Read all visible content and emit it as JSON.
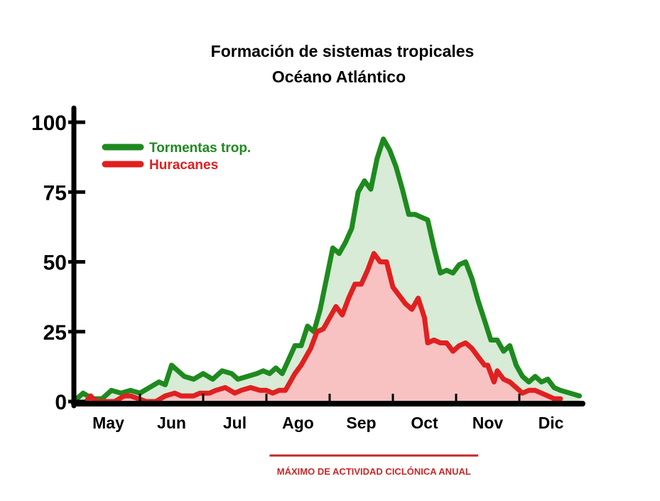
{
  "chart_data": {
    "type": "area",
    "title": "Formación de sistemas tropicales",
    "subtitle": "Océano Atlántico",
    "xlabel": "",
    "ylabel": "",
    "ylim": [
      0,
      100
    ],
    "y_ticks": [
      "0",
      "25",
      "50",
      "75",
      "100"
    ],
    "categories": [
      "May",
      "Jun",
      "Jul",
      "Ago",
      "Sep",
      "Oct",
      "Nov",
      "Dic"
    ],
    "x_range": [
      0,
      8
    ],
    "legend_position": "top-left",
    "grid": false,
    "note": "MÁXIMO DE ACTIVIDAD CICLÓNICA ANUAL",
    "note_range": [
      3.05,
      6.35
    ],
    "series": [
      {
        "name": "Tormentas trop.",
        "color": "#1e8a1e",
        "fill": "#d7ebd7",
        "points": [
          [
            0.0,
            1
          ],
          [
            0.1,
            3
          ],
          [
            0.25,
            1
          ],
          [
            0.4,
            1
          ],
          [
            0.55,
            4
          ],
          [
            0.7,
            3
          ],
          [
            0.85,
            4
          ],
          [
            1.0,
            3
          ],
          [
            1.15,
            5
          ],
          [
            1.3,
            7
          ],
          [
            1.4,
            6
          ],
          [
            1.5,
            13
          ],
          [
            1.6,
            11
          ],
          [
            1.7,
            9
          ],
          [
            1.85,
            8
          ],
          [
            2.0,
            10
          ],
          [
            2.15,
            8
          ],
          [
            2.3,
            11
          ],
          [
            2.45,
            10
          ],
          [
            2.55,
            8
          ],
          [
            2.7,
            9
          ],
          [
            2.85,
            10
          ],
          [
            2.95,
            11
          ],
          [
            3.05,
            10
          ],
          [
            3.15,
            12
          ],
          [
            3.25,
            10
          ],
          [
            3.35,
            15
          ],
          [
            3.45,
            20
          ],
          [
            3.55,
            20
          ],
          [
            3.65,
            27
          ],
          [
            3.75,
            25
          ],
          [
            3.85,
            33
          ],
          [
            3.95,
            44
          ],
          [
            4.05,
            55
          ],
          [
            4.15,
            53
          ],
          [
            4.25,
            57
          ],
          [
            4.35,
            62
          ],
          [
            4.45,
            75
          ],
          [
            4.55,
            79
          ],
          [
            4.65,
            76
          ],
          [
            4.75,
            87
          ],
          [
            4.85,
            94
          ],
          [
            4.95,
            90
          ],
          [
            5.05,
            84
          ],
          [
            5.15,
            76
          ],
          [
            5.25,
            67
          ],
          [
            5.35,
            67
          ],
          [
            5.45,
            66
          ],
          [
            5.55,
            65
          ],
          [
            5.65,
            55
          ],
          [
            5.75,
            46
          ],
          [
            5.85,
            47
          ],
          [
            5.95,
            46
          ],
          [
            6.05,
            49
          ],
          [
            6.15,
            50
          ],
          [
            6.25,
            44
          ],
          [
            6.35,
            36
          ],
          [
            6.45,
            29
          ],
          [
            6.55,
            22
          ],
          [
            6.65,
            22
          ],
          [
            6.75,
            18
          ],
          [
            6.85,
            20
          ],
          [
            6.95,
            13
          ],
          [
            7.05,
            9
          ],
          [
            7.15,
            7
          ],
          [
            7.25,
            9
          ],
          [
            7.35,
            7
          ],
          [
            7.45,
            8
          ],
          [
            7.55,
            5
          ],
          [
            7.65,
            4
          ],
          [
            7.8,
            3
          ],
          [
            7.95,
            2
          ]
        ]
      },
      {
        "name": "Huracanes",
        "color": "#e02020",
        "fill": "#f9c2c2",
        "points": [
          [
            0.15,
            0
          ],
          [
            0.22,
            2
          ],
          [
            0.3,
            0
          ],
          [
            0.6,
            0
          ],
          [
            0.75,
            2
          ],
          [
            0.85,
            2
          ],
          [
            1.1,
            0
          ],
          [
            1.25,
            0
          ],
          [
            1.4,
            2
          ],
          [
            1.55,
            3
          ],
          [
            1.65,
            2
          ],
          [
            1.85,
            2
          ],
          [
            1.95,
            3
          ],
          [
            2.1,
            3
          ],
          [
            2.2,
            4
          ],
          [
            2.35,
            5
          ],
          [
            2.5,
            3
          ],
          [
            2.6,
            4
          ],
          [
            2.75,
            5
          ],
          [
            2.9,
            4
          ],
          [
            3.0,
            4
          ],
          [
            3.1,
            3
          ],
          [
            3.2,
            4
          ],
          [
            3.3,
            4
          ],
          [
            3.45,
            10
          ],
          [
            3.55,
            13
          ],
          [
            3.7,
            19
          ],
          [
            3.8,
            25
          ],
          [
            3.9,
            26
          ],
          [
            4.0,
            30
          ],
          [
            4.1,
            34
          ],
          [
            4.2,
            31
          ],
          [
            4.3,
            37
          ],
          [
            4.4,
            42
          ],
          [
            4.5,
            42
          ],
          [
            4.6,
            47
          ],
          [
            4.7,
            53
          ],
          [
            4.8,
            50
          ],
          [
            4.9,
            50
          ],
          [
            5.0,
            41
          ],
          [
            5.1,
            38
          ],
          [
            5.2,
            35
          ],
          [
            5.3,
            33
          ],
          [
            5.4,
            37
          ],
          [
            5.5,
            30
          ],
          [
            5.55,
            21
          ],
          [
            5.65,
            22
          ],
          [
            5.75,
            21
          ],
          [
            5.85,
            21
          ],
          [
            5.95,
            18
          ],
          [
            6.05,
            20
          ],
          [
            6.15,
            21
          ],
          [
            6.25,
            19
          ],
          [
            6.35,
            16
          ],
          [
            6.45,
            13
          ],
          [
            6.5,
            13
          ],
          [
            6.6,
            7
          ],
          [
            6.65,
            11
          ],
          [
            6.75,
            8
          ],
          [
            6.85,
            7
          ],
          [
            6.95,
            5
          ],
          [
            7.05,
            3
          ],
          [
            7.15,
            4
          ],
          [
            7.25,
            4
          ],
          [
            7.35,
            3
          ],
          [
            7.45,
            2
          ],
          [
            7.55,
            1
          ],
          [
            7.65,
            1
          ]
        ]
      }
    ]
  }
}
